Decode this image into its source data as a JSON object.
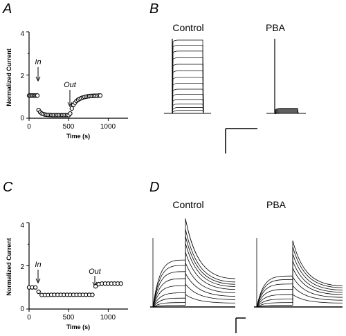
{
  "panels": {
    "a": "A",
    "b": "B",
    "c": "C",
    "d": "D"
  },
  "panel_b": {
    "left_title": "Control",
    "right_title": "PBA",
    "control_trace_levels": [
      0.04,
      0.08,
      0.13,
      0.19,
      0.26,
      0.33,
      0.41,
      0.49,
      0.58,
      0.67,
      0.76,
      0.85,
      0.93,
      1.0
    ],
    "pba_trace_levels": [
      0.01,
      0.02,
      0.03,
      0.04,
      0.05,
      0.06,
      0.07
    ]
  },
  "panel_d": {
    "left_title": "Control",
    "right_title": "PBA",
    "control_prepulse_levels": [
      0.02,
      0.05,
      0.1,
      0.16,
      0.24,
      0.32,
      0.4,
      0.47,
      0.53
    ],
    "control_tail_peaks": [
      1.0,
      0.88,
      0.8,
      0.72,
      0.62,
      0.5,
      0.38,
      0.26,
      0.14
    ],
    "pba_prepulse_levels": [
      0.02,
      0.05,
      0.09,
      0.14,
      0.2,
      0.26,
      0.31,
      0.35
    ],
    "pba_tail_peaks": [
      0.75,
      0.68,
      0.6,
      0.52,
      0.44,
      0.34,
      0.24,
      0.14
    ]
  },
  "chart_data": [
    {
      "panel": "A",
      "type": "scatter",
      "title": "",
      "xlabel": "Time (s)",
      "ylabel": "Normalized Current",
      "xlim": [
        0,
        1250
      ],
      "ylim": [
        0,
        4
      ],
      "xticks": [
        "0",
        "500",
        "1000"
      ],
      "yticks": [
        "0",
        "2",
        "4"
      ],
      "grid": false,
      "annotations": [
        {
          "text": "In",
          "x": 100,
          "y": 1.6
        },
        {
          "text": "Out",
          "x": 500,
          "y": 0.55
        }
      ],
      "x": [
        0,
        15,
        30,
        45,
        60,
        75,
        90,
        105,
        120,
        140,
        160,
        180,
        200,
        220,
        240,
        260,
        280,
        300,
        320,
        340,
        360,
        380,
        400,
        420,
        440,
        460,
        480,
        500,
        520,
        540,
        560,
        580,
        600,
        620,
        640,
        660,
        680,
        700,
        720,
        740,
        760,
        780,
        800,
        820,
        840,
        860,
        880,
        900
      ],
      "y": [
        1.05,
        1.05,
        1.05,
        1.05,
        1.05,
        1.05,
        1.05,
        1.05,
        0.38,
        0.28,
        0.22,
        0.19,
        0.17,
        0.16,
        0.15,
        0.15,
        0.14,
        0.14,
        0.14,
        0.14,
        0.14,
        0.14,
        0.14,
        0.14,
        0.14,
        0.14,
        0.14,
        0.14,
        0.22,
        0.45,
        0.62,
        0.72,
        0.8,
        0.86,
        0.9,
        0.93,
        0.96,
        0.98,
        1.0,
        1.01,
        1.02,
        1.03,
        1.03,
        1.04,
        1.04,
        1.04,
        1.05,
        1.05
      ]
    },
    {
      "panel": "C",
      "type": "scatter",
      "title": "",
      "xlabel": "Time (s)",
      "ylabel": "Normalized Current",
      "xlim": [
        0,
        1250
      ],
      "ylim": [
        0,
        4
      ],
      "xticks": [
        "0",
        "500",
        "1000"
      ],
      "yticks": [
        "0",
        "2",
        "4"
      ],
      "grid": false,
      "annotations": [
        {
          "text": "In",
          "x": 100,
          "y": 1.6
        },
        {
          "text": "Out",
          "x": 800,
          "y": 1.6
        }
      ],
      "x": [
        0,
        40,
        80,
        120,
        160,
        200,
        240,
        280,
        320,
        360,
        400,
        440,
        480,
        520,
        560,
        600,
        640,
        680,
        720,
        760,
        800,
        840,
        880,
        920,
        960,
        1000,
        1040,
        1080,
        1120,
        1160
      ],
      "y": [
        1.0,
        1.0,
        1.0,
        0.8,
        0.65,
        0.65,
        0.65,
        0.66,
        0.66,
        0.66,
        0.66,
        0.66,
        0.66,
        0.66,
        0.66,
        0.66,
        0.66,
        0.66,
        0.66,
        0.66,
        0.66,
        1.05,
        1.15,
        1.18,
        1.18,
        1.18,
        1.18,
        1.18,
        1.18,
        1.18
      ]
    }
  ]
}
